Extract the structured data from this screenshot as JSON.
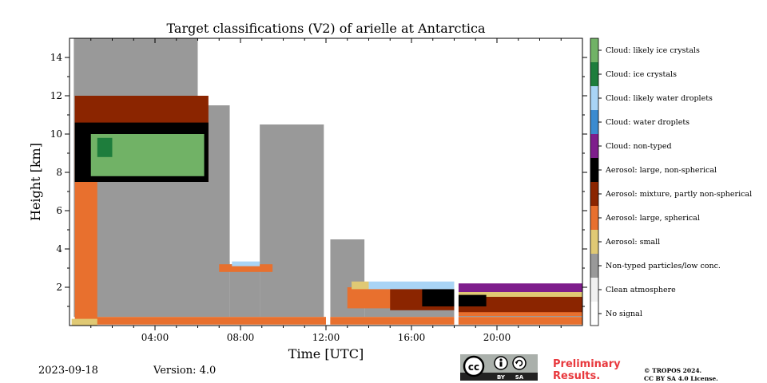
{
  "chart_data": {
    "type": "heatmap",
    "title": "Target classifications (V2) of arielle at Antarctica",
    "xlabel": "Time [UTC]",
    "ylabel": "Height [km]",
    "xlim": [
      0,
      24
    ],
    "ylim": [
      0,
      15
    ],
    "x_ticks": [
      {
        "value": 4,
        "label": "04:00"
      },
      {
        "value": 8,
        "label": "08:00"
      },
      {
        "value": 12,
        "label": "12:00"
      },
      {
        "value": 16,
        "label": "16:00"
      },
      {
        "value": 20,
        "label": "20:00"
      }
    ],
    "y_ticks": [
      {
        "value": 2,
        "label": "2"
      },
      {
        "value": 4,
        "label": "4"
      },
      {
        "value": 6,
        "label": "6"
      },
      {
        "value": 8,
        "label": "8"
      },
      {
        "value": 10,
        "label": "10"
      },
      {
        "value": 12,
        "label": "12"
      },
      {
        "value": 14,
        "label": "14"
      }
    ],
    "classes": [
      {
        "id": 0,
        "label": "No signal",
        "color": "#ffffff"
      },
      {
        "id": 1,
        "label": "Clean atmosphere",
        "color": "#f0f0f0"
      },
      {
        "id": 2,
        "label": "Non-typed particles/low conc.",
        "color": "#999999"
      },
      {
        "id": 3,
        "label": "Aerosol: small",
        "color": "#e0c974"
      },
      {
        "id": 4,
        "label": "Aerosol: large, spherical",
        "color": "#e8702e"
      },
      {
        "id": 5,
        "label": "Aerosol: mixture, partly non-spherical",
        "color": "#8b2500"
      },
      {
        "id": 6,
        "label": "Aerosol: large, non-spherical",
        "color": "#000000"
      },
      {
        "id": 7,
        "label": "Cloud: non-typed",
        "color": "#7e1e8c"
      },
      {
        "id": 8,
        "label": "Cloud: water droplets",
        "color": "#3b8bd0"
      },
      {
        "id": 9,
        "label": "Cloud: likely water droplets",
        "color": "#a9d4f5"
      },
      {
        "id": 10,
        "label": "Cloud: ice crystals",
        "color": "#1e7d3c"
      },
      {
        "id": 11,
        "label": "Cloud: likely ice crystals",
        "color": "#71b266"
      }
    ],
    "regions": [
      {
        "class": 2,
        "x": [
          0.2,
          6.0
        ],
        "y": [
          0.45,
          15
        ]
      },
      {
        "class": 2,
        "x": [
          6.0,
          7.5
        ],
        "y": [
          0.45,
          11.5
        ]
      },
      {
        "class": 2,
        "x": [
          7.5,
          8.9
        ],
        "y": [
          0.45,
          3.2
        ]
      },
      {
        "class": 2,
        "x": [
          8.9,
          11.9
        ],
        "y": [
          0.45,
          10.5
        ]
      },
      {
        "class": 2,
        "x": [
          12.2,
          13.8
        ],
        "y": [
          0.45,
          4.5
        ]
      },
      {
        "class": 2,
        "x": [
          13.8,
          18.0
        ],
        "y": [
          0.45,
          1.9
        ]
      },
      {
        "class": 2,
        "x": [
          18.2,
          24.0
        ],
        "y": [
          0.45,
          1.3
        ]
      },
      {
        "class": 4,
        "x": [
          0.25,
          1.3
        ],
        "y": [
          0.4,
          12
        ]
      },
      {
        "class": 4,
        "x": [
          0.25,
          24.0
        ],
        "y": [
          0.05,
          0.45
        ]
      },
      {
        "class": 4,
        "x": [
          7.0,
          9.5
        ],
        "y": [
          2.8,
          3.2
        ]
      },
      {
        "class": 4,
        "x": [
          13.0,
          18.0
        ],
        "y": [
          0.9,
          2.0
        ]
      },
      {
        "class": 4,
        "x": [
          18.2,
          24.0
        ],
        "y": [
          0.5,
          1.5
        ]
      },
      {
        "class": 3,
        "x": [
          0.1,
          1.3
        ],
        "y": [
          0.0,
          0.35
        ]
      },
      {
        "class": 3,
        "x": [
          13.2,
          14.0
        ],
        "y": [
          1.9,
          2.3
        ]
      },
      {
        "class": 3,
        "x": [
          18.2,
          24.0
        ],
        "y": [
          1.5,
          1.75
        ]
      },
      {
        "class": 5,
        "x": [
          0.25,
          6.5
        ],
        "y": [
          7.5,
          12.0
        ]
      },
      {
        "class": 5,
        "x": [
          15.0,
          18.0
        ],
        "y": [
          0.8,
          2.0
        ]
      },
      {
        "class": 5,
        "x": [
          18.2,
          24.0
        ],
        "y": [
          0.7,
          1.5
        ]
      },
      {
        "class": 6,
        "x": [
          0.25,
          6.5
        ],
        "y": [
          7.5,
          10.6
        ]
      },
      {
        "class": 6,
        "x": [
          16.5,
          18.0
        ],
        "y": [
          1.0,
          1.9
        ]
      },
      {
        "class": 6,
        "x": [
          18.2,
          19.5
        ],
        "y": [
          1.0,
          1.6
        ]
      },
      {
        "class": 11,
        "x": [
          1.0,
          6.3
        ],
        "y": [
          7.8,
          10.0
        ]
      },
      {
        "class": 10,
        "x": [
          1.3,
          2.0
        ],
        "y": [
          8.8,
          9.8
        ]
      },
      {
        "class": 9,
        "x": [
          7.6,
          8.9
        ],
        "y": [
          3.1,
          3.35
        ]
      },
      {
        "class": 9,
        "x": [
          14.0,
          18.0
        ],
        "y": [
          1.9,
          2.3
        ]
      },
      {
        "class": 7,
        "x": [
          18.2,
          24.0
        ],
        "y": [
          1.75,
          2.2
        ]
      },
      {
        "class": 0,
        "x": [
          7.5,
          8.9
        ],
        "y": [
          3.35,
          15
        ]
      },
      {
        "class": 0,
        "x": [
          12.0,
          12.2
        ],
        "y": [
          0.0,
          15
        ]
      },
      {
        "class": 0,
        "x": [
          18.0,
          18.2
        ],
        "y": [
          0.0,
          15
        ]
      }
    ]
  },
  "footer": {
    "date": "2023-09-18",
    "version": "Version: 4.0",
    "license_badge": [
      "cc",
      "BY",
      "SA"
    ],
    "preliminary": [
      "Preliminary",
      "Results."
    ],
    "copyright": [
      "© TROPOS 2024.",
      "CC BY SA 4.0 License."
    ]
  }
}
